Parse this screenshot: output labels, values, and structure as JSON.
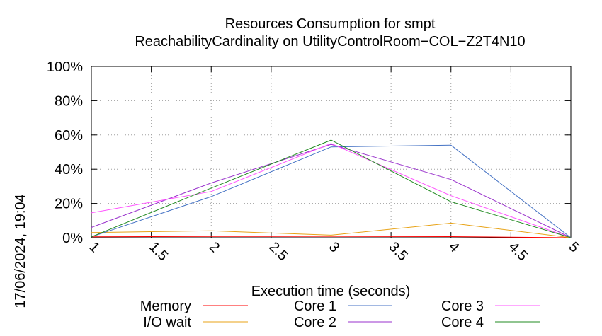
{
  "chart_data": {
    "type": "line",
    "title": "Resources Consumption for smpt",
    "subtitle": "ReachabilityCardinality on UtilityControlRoom−COL−Z2T4N10",
    "xlabel": "Execution time (seconds)",
    "ylabel": "",
    "timestamp": "17/06/2024, 19:04",
    "xlim": [
      1,
      5
    ],
    "ylim": [
      0,
      100
    ],
    "x_ticks": [
      1,
      1.5,
      2,
      2.5,
      3,
      3.5,
      4,
      4.5,
      5
    ],
    "x_tick_labels": [
      "1",
      "1.5",
      "2",
      "2.5",
      "3",
      "3.5",
      "4",
      "4.5",
      "5"
    ],
    "y_ticks": [
      0,
      20,
      40,
      60,
      80,
      100
    ],
    "y_tick_labels": [
      "0%",
      "20%",
      "40%",
      "60%",
      "80%",
      "100%"
    ],
    "grid": true,
    "legend_position": "bottom",
    "x": [
      1,
      2,
      3,
      4,
      5
    ],
    "series": [
      {
        "name": "Memory",
        "color": "#ff0000",
        "values": [
          0.5,
          0.7,
          0.8,
          0.6,
          0
        ]
      },
      {
        "name": "I/O wait",
        "color": "#e8a317",
        "values": [
          3,
          4,
          1.5,
          8.5,
          0
        ]
      },
      {
        "name": "Core 1",
        "color": "#4472c4",
        "values": [
          0.5,
          24,
          53,
          54,
          0
        ]
      },
      {
        "name": "Core 2",
        "color": "#9932cc",
        "values": [
          6,
          32,
          54.5,
          34,
          0
        ]
      },
      {
        "name": "Core 3",
        "color": "#ff55ff",
        "values": [
          14.5,
          27,
          55,
          24.5,
          0
        ]
      },
      {
        "name": "Core 4",
        "color": "#228b22",
        "values": [
          0.5,
          29,
          57,
          21,
          0
        ]
      }
    ]
  }
}
